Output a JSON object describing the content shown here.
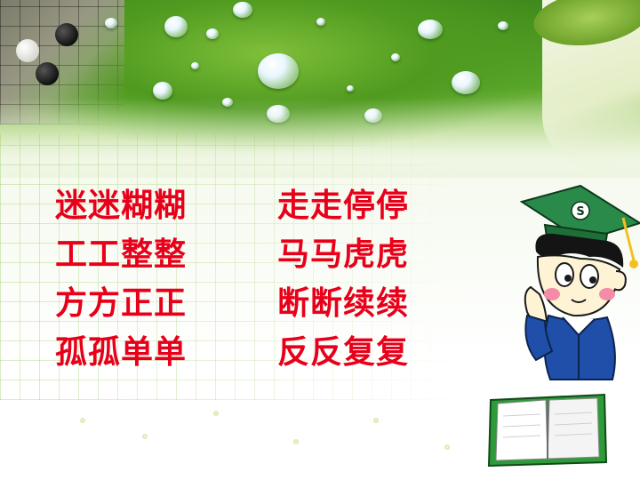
{
  "slide": {
    "words": {
      "left": [
        "迷迷糊糊",
        "工工整整",
        "方方正正",
        "孤孤单单"
      ],
      "right": [
        "走走停停",
        "马马虎虎",
        "断断续续",
        "反反复复"
      ]
    },
    "student_cap_letter": "S",
    "colors": {
      "word_text": "#e8001a",
      "banner_green": "#4f9a1f",
      "grid_green": "#96c85a",
      "cap_green": "#2a8a4a",
      "book_green": "#2f9a3a"
    }
  }
}
